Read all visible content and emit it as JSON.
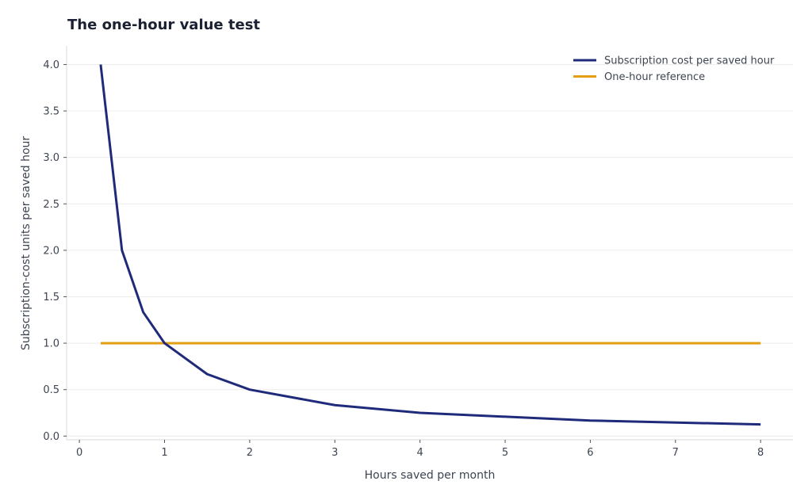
{
  "chart_data": {
    "type": "line",
    "title": "The one-hour value test",
    "xlabel": "Hours saved per month",
    "ylabel": "Subscription-cost units per saved hour",
    "xlim": [
      -0.15,
      8.38
    ],
    "ylim": [
      -0.04,
      4.2
    ],
    "x_ticks": [
      0,
      1,
      2,
      3,
      4,
      5,
      6,
      7,
      8
    ],
    "y_ticks": [
      0.0,
      0.5,
      1.0,
      1.5,
      2.0,
      2.5,
      3.0,
      3.5,
      4.0
    ],
    "x_tick_labels": [
      "0",
      "1",
      "2",
      "3",
      "4",
      "5",
      "6",
      "7",
      "8"
    ],
    "y_tick_labels": [
      "0.0",
      "0.5",
      "1.0",
      "1.5",
      "2.0",
      "2.5",
      "3.0",
      "3.5",
      "4.0"
    ],
    "grid": "horizontal",
    "legend_position": "top-right",
    "series": [
      {
        "name": "Subscription cost per saved hour",
        "color": "#1f2b7a",
        "x": [
          0.25,
          0.5,
          0.75,
          1,
          1.5,
          2,
          3,
          4,
          6,
          8
        ],
        "y": [
          4.0,
          2.0,
          1.333,
          1.0,
          0.667,
          0.5,
          0.333,
          0.25,
          0.167,
          0.125
        ]
      },
      {
        "name": "One-hour reference",
        "color": "#e39e12",
        "x": [
          0.25,
          8
        ],
        "y": [
          1.0,
          1.0
        ]
      }
    ]
  }
}
